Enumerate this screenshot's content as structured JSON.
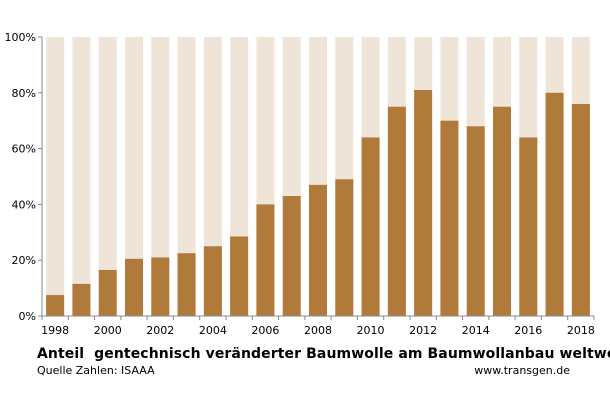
{
  "title": "Anteil  gentechnisch veränderter Baumwolle am Baumwollanbau weltweit",
  "source": "Quelle Zahlen: ISAAA",
  "website": "www.transgen.de",
  "colors": {
    "bar": "#b07a3b",
    "background_bar": "#efe4d8",
    "axis": "#888888"
  },
  "chart_data": {
    "type": "bar",
    "title": "Anteil  gentechnisch veränderter Baumwolle am Baumwollanbau weltweit",
    "xlabel": "",
    "ylabel": "",
    "ylim": [
      0,
      100
    ],
    "y_ticks": [
      "0%",
      "20%",
      "40%",
      "60%",
      "80%",
      "100%"
    ],
    "y_tick_values": [
      0,
      20,
      40,
      60,
      80,
      100
    ],
    "x_tick_labels": [
      "1998",
      "2000",
      "2002",
      "2004",
      "2006",
      "2008",
      "2010",
      "2012",
      "2014",
      "2016",
      "2018"
    ],
    "categories": [
      "1998",
      "1999",
      "2000",
      "2001",
      "2002",
      "2003",
      "2004",
      "2005",
      "2006",
      "2007",
      "2008",
      "2009",
      "2010",
      "2011",
      "2012",
      "2013",
      "2014",
      "2015",
      "2016",
      "2017",
      "2018"
    ],
    "values": [
      7.5,
      11.5,
      16.5,
      20.5,
      21,
      22.5,
      25,
      28.5,
      40,
      43,
      47,
      49,
      64,
      75,
      81,
      70,
      68,
      75,
      64,
      80,
      76
    ],
    "grid": false,
    "legend": "none"
  }
}
